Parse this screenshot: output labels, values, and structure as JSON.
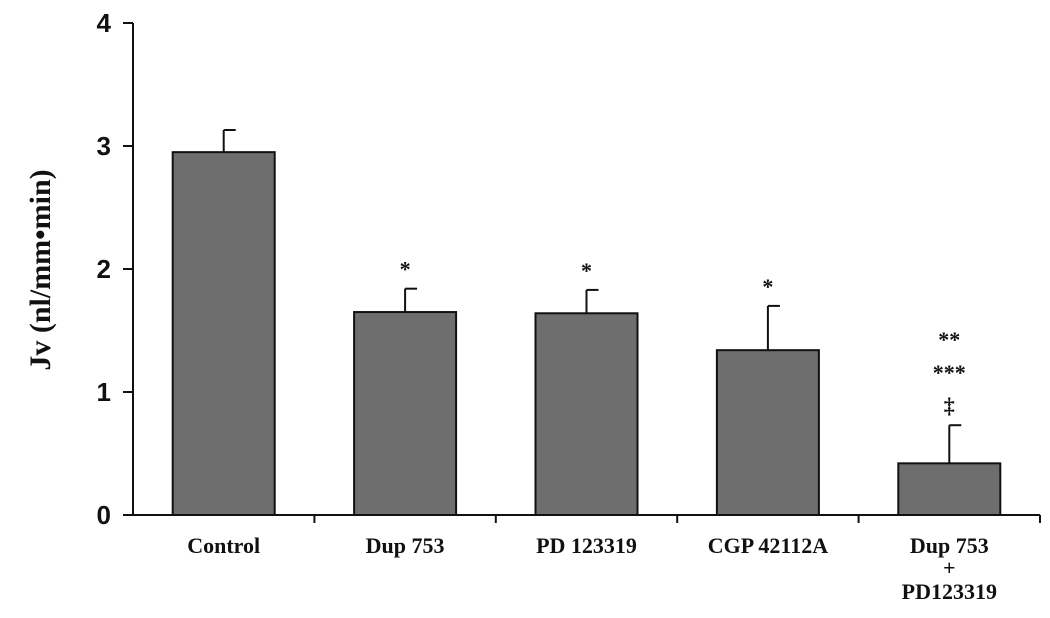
{
  "chart_data": {
    "type": "bar",
    "categories": [
      "Control",
      "Dup 753",
      "PD 123319",
      "CGP 42112A",
      "Dup 753\n+\nPD123319"
    ],
    "values": [
      2.95,
      1.65,
      1.64,
      1.34,
      0.42
    ],
    "errors": [
      0.18,
      0.19,
      0.19,
      0.36,
      0.31
    ],
    "annotations": [
      [],
      [
        "*"
      ],
      [
        "*"
      ],
      [
        "*"
      ],
      [
        "**",
        "***",
        "‡"
      ]
    ],
    "ylabel": "Jv (nl/mm•min)",
    "xlabel": "",
    "ylim": [
      0,
      4
    ],
    "yticks": [
      "0",
      "1",
      "2",
      "3",
      "4"
    ],
    "grid": false,
    "bar_color": "#6e6e6e"
  }
}
